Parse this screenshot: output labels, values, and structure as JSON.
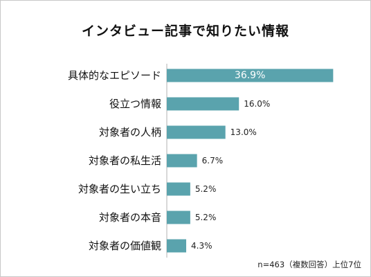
{
  "chart_data": {
    "type": "bar",
    "orientation": "horizontal",
    "title": "インタビュー記事で知りたい情報",
    "categories": [
      "具体的なエピソード",
      "役立つ情報",
      "対象者の人柄",
      "対象者の私生活",
      "対象者の生い立ち",
      "対象者の本音",
      "対象者の価値観"
    ],
    "values": [
      36.9,
      16.0,
      13.0,
      6.7,
      5.2,
      5.2,
      4.3
    ],
    "value_labels": [
      "36.9%",
      "16.0%",
      "13.0%",
      "6.7%",
      "5.2%",
      "5.2%",
      "4.3%"
    ],
    "unit": "%",
    "xlim": [
      0,
      37
    ],
    "grid": false,
    "legend": "none",
    "bar_color": "#5aa3ad",
    "note": "n=463（複数回答）上位7位"
  }
}
